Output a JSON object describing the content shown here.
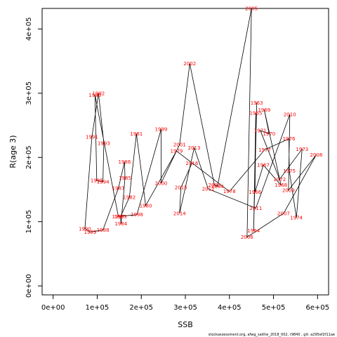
{
  "chart_data": {
    "type": "line",
    "xlabel": "SSB",
    "ylabel": "R(age 3)",
    "xlim": [
      -25000,
      625000
    ],
    "ylim": [
      -14000,
      432000
    ],
    "x_ticks": [
      0,
      100000,
      200000,
      300000,
      400000,
      500000,
      600000
    ],
    "x_tick_labels": [
      "0e+00",
      "1e+05",
      "2e+05",
      "3e+05",
      "4e+05",
      "5e+05",
      "6e+05"
    ],
    "y_ticks": [
      0,
      100000,
      200000,
      300000,
      400000
    ],
    "y_tick_labels": [
      "0e+00",
      "1e+05",
      "2e+05",
      "3e+05",
      "4e+05"
    ],
    "grid": false,
    "line_color": "#000000",
    "label_color": "#ff0000",
    "footer": "stockassessment.org, afwg_saithe_2018_002, r9840 , git: a295ef2f11ae",
    "points": [
      {
        "year": "1963",
        "x": 462000,
        "y": 285000
      },
      {
        "year": "1964",
        "x": 455000,
        "y": 86000
      },
      {
        "year": "1965",
        "x": 460000,
        "y": 269000
      },
      {
        "year": "1966",
        "x": 458000,
        "y": 146000
      },
      {
        "year": "1967",
        "x": 477000,
        "y": 188000
      },
      {
        "year": "1968",
        "x": 517000,
        "y": 157000
      },
      {
        "year": "1969",
        "x": 479000,
        "y": 274000
      },
      {
        "year": "1970",
        "x": 490000,
        "y": 237000
      },
      {
        "year": "1971",
        "x": 470000,
        "y": 242000
      },
      {
        "year": "1972",
        "x": 514000,
        "y": 166000
      },
      {
        "year": "1973",
        "x": 565000,
        "y": 213000
      },
      {
        "year": "1974",
        "x": 552000,
        "y": 106000
      },
      {
        "year": "1975",
        "x": 536000,
        "y": 179000
      },
      {
        "year": "1976",
        "x": 535000,
        "y": 229000
      },
      {
        "year": "1977",
        "x": 480000,
        "y": 212000
      },
      {
        "year": "1978",
        "x": 400000,
        "y": 147000
      },
      {
        "year": "1979",
        "x": 280000,
        "y": 210000
      },
      {
        "year": "1980",
        "x": 210000,
        "y": 125000
      },
      {
        "year": "1981",
        "x": 189000,
        "y": 237000
      },
      {
        "year": "1982",
        "x": 173000,
        "y": 138000
      },
      {
        "year": "1983",
        "x": 153000,
        "y": 108000
      },
      {
        "year": "1984",
        "x": 154000,
        "y": 97000
      },
      {
        "year": "1985",
        "x": 163000,
        "y": 168000
      },
      {
        "year": "1986",
        "x": 162000,
        "y": 193000
      },
      {
        "year": "1987",
        "x": 148000,
        "y": 152000
      },
      {
        "year": "1988",
        "x": 113000,
        "y": 87000
      },
      {
        "year": "1989",
        "x": 84000,
        "y": 84000
      },
      {
        "year": "1990",
        "x": 72000,
        "y": 89000
      },
      {
        "year": "1991",
        "x": 88000,
        "y": 232000
      },
      {
        "year": "1992",
        "x": 103000,
        "y": 300000
      },
      {
        "year": "1993",
        "x": 115000,
        "y": 222000
      },
      {
        "year": "1994",
        "x": 113000,
        "y": 162000
      },
      {
        "year": "1995",
        "x": 99000,
        "y": 164000
      },
      {
        "year": "1996",
        "x": 95000,
        "y": 297000
      },
      {
        "year": "1997",
        "x": 148000,
        "y": 108000
      },
      {
        "year": "1998",
        "x": 190000,
        "y": 111000
      },
      {
        "year": "1999",
        "x": 245000,
        "y": 244000
      },
      {
        "year": "2000",
        "x": 245000,
        "y": 160000
      },
      {
        "year": "2001",
        "x": 287000,
        "y": 220000
      },
      {
        "year": "2002",
        "x": 310000,
        "y": 346000
      },
      {
        "year": "2003",
        "x": 366000,
        "y": 157000
      },
      {
        "year": "2004",
        "x": 373000,
        "y": 155000
      },
      {
        "year": "2005",
        "x": 450000,
        "y": 432000
      },
      {
        "year": "2006",
        "x": 440000,
        "y": 76000
      },
      {
        "year": "2007",
        "x": 523000,
        "y": 113000
      },
      {
        "year": "2008",
        "x": 597000,
        "y": 204000
      },
      {
        "year": "2009",
        "x": 534000,
        "y": 149000
      },
      {
        "year": "2010",
        "x": 537000,
        "y": 267000
      },
      {
        "year": "2011",
        "x": 460000,
        "y": 121000
      },
      {
        "year": "2012",
        "x": 352000,
        "y": 151000
      },
      {
        "year": "2013",
        "x": 320000,
        "y": 215000
      },
      {
        "year": "2014",
        "x": 287000,
        "y": 113000
      },
      {
        "year": "2015",
        "x": 290000,
        "y": 153000
      },
      {
        "year": "2016",
        "x": 315000,
        "y": 191000
      }
    ]
  }
}
